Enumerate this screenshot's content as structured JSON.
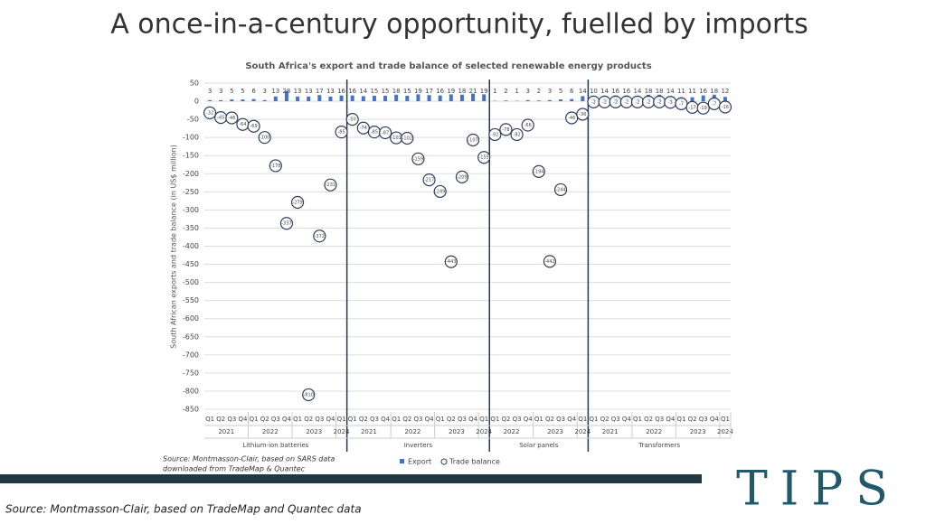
{
  "slide_title": "A once-in-a-century opportunity, fuelled by imports",
  "footer_source": "Source: Montmasson-Clair, based on TradeMap and Quantec data",
  "logo": "TIPS",
  "chart_data": {
    "type": "bar-scatter",
    "title": "South Africa's export and trade balance of selected renewable energy products",
    "y_label": "South African exports and trade balance (in US$ million)",
    "source": [
      "Source: Montmasson-Clair, based on SARS data",
      "downloaded from TradeMap & Quantec"
    ],
    "groups": [
      {
        "name": "Lithium-ion batteries",
        "years": [
          {
            "year": "2021",
            "quarters": [
              "Q1",
              "Q2",
              "Q3",
              "Q4"
            ]
          },
          {
            "year": "2022",
            "quarters": [
              "Q1",
              "Q2",
              "Q3",
              "Q4"
            ]
          },
          {
            "year": "2023",
            "quarters": [
              "Q1",
              "Q2",
              "Q3",
              "Q4"
            ]
          },
          {
            "year": "2024",
            "quarters": [
              "Q1"
            ]
          }
        ]
      },
      {
        "name": "Inverters",
        "years": [
          {
            "year": "2021",
            "quarters": [
              "Q1",
              "Q2",
              "Q3",
              "Q4"
            ]
          },
          {
            "year": "2022",
            "quarters": [
              "Q1",
              "Q2",
              "Q3",
              "Q4"
            ]
          },
          {
            "year": "2023",
            "quarters": [
              "Q1",
              "Q2",
              "Q3",
              "Q4"
            ]
          },
          {
            "year": "2024",
            "quarters": [
              "Q1"
            ]
          }
        ]
      },
      {
        "name": "Solar panels",
        "years": [
          {
            "year": "2022",
            "quarters": [
              "Q1",
              "Q2",
              "Q3",
              "Q4"
            ]
          },
          {
            "year": "2023",
            "quarters": [
              "Q1",
              "Q2",
              "Q3",
              "Q4"
            ]
          },
          {
            "year": "2024",
            "quarters": [
              "Q1"
            ]
          }
        ]
      },
      {
        "name": "Transformers",
        "years": [
          {
            "year": "2021",
            "quarters": [
              "Q1",
              "Q2",
              "Q3",
              "Q4"
            ]
          },
          {
            "year": "2022",
            "quarters": [
              "Q1",
              "Q2",
              "Q3",
              "Q4"
            ]
          },
          {
            "year": "2023",
            "quarters": [
              "Q1",
              "Q2",
              "Q3",
              "Q4"
            ]
          },
          {
            "year": "2024",
            "quarters": [
              "Q1"
            ]
          }
        ]
      }
    ],
    "series": [
      {
        "name": "Export",
        "color": "#4472c4",
        "values": [
          3,
          3,
          5,
          5,
          6,
          3,
          13,
          28,
          13,
          13,
          17,
          13,
          16,
          16,
          14,
          15,
          15,
          18,
          15,
          19,
          17,
          16,
          19,
          18,
          21,
          19,
          1,
          2,
          1,
          3,
          2,
          3,
          5,
          6,
          14,
          10,
          14,
          16,
          16,
          14,
          18,
          18,
          14,
          11,
          11,
          16,
          18,
          12
        ]
      },
      {
        "name": "Trade balance",
        "color": "#2f3e5c",
        "values": [
          -32,
          -45,
          -46,
          -64,
          -69,
          -100,
          -178,
          -337,
          -279,
          -810,
          -372,
          -231,
          -85,
          -50,
          -74,
          -85,
          -87,
          -101,
          -102,
          -159,
          -217,
          -249,
          -443,
          -209,
          -107,
          -155,
          -92,
          -78,
          -92,
          -66,
          -194,
          -442,
          -244,
          -46,
          -36,
          -2,
          -2,
          -2,
          -2,
          -2,
          -2,
          -2,
          -3,
          -7,
          -17,
          -19,
          -7,
          -16
        ]
      }
    ],
    "ylim": [
      -850,
      50
    ],
    "yticks": [
      50,
      0,
      -50,
      -100,
      -150,
      -200,
      -250,
      -300,
      -350,
      -400,
      -450,
      -500,
      -550,
      -600,
      -650,
      -700,
      -750,
      -800,
      -850
    ],
    "grid": true
  }
}
